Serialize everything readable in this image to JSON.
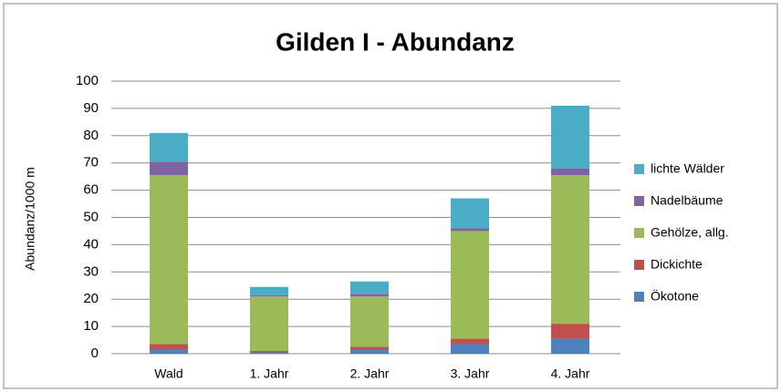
{
  "chart_data": {
    "type": "stacked_bar",
    "title": "Gilden I - Abundanz",
    "y_label": "Abundanz/1000 m",
    "categories": [
      "Wald",
      "1. Jahr",
      "2. Jahr",
      "3. Jahr",
      "4. Jahr"
    ],
    "series": [
      {
        "name": "Ökotone",
        "color": "#4f81bd",
        "values": [
          1.5,
          0.5,
          1.5,
          3.5,
          5.5
        ]
      },
      {
        "name": "Dickichte",
        "color": "#c0504d",
        "values": [
          2,
          0.5,
          1,
          2,
          5.5
        ]
      },
      {
        "name": "Gehölze, allg.",
        "color": "#9bbb59",
        "values": [
          62,
          20,
          18.5,
          39.5,
          54.5
        ]
      },
      {
        "name": "Nadelbäume",
        "color": "#8064a2",
        "values": [
          5,
          0.5,
          1,
          1,
          2.5
        ]
      },
      {
        "name": "lichte Wälder",
        "color": "#4bacc6",
        "values": [
          10.5,
          3,
          4.5,
          11,
          23
        ]
      }
    ],
    "ylim": [
      0,
      100
    ],
    "yticks": [
      0,
      10,
      20,
      30,
      40,
      50,
      60,
      70,
      80,
      90,
      100
    ],
    "grid": true,
    "legend": "right"
  }
}
